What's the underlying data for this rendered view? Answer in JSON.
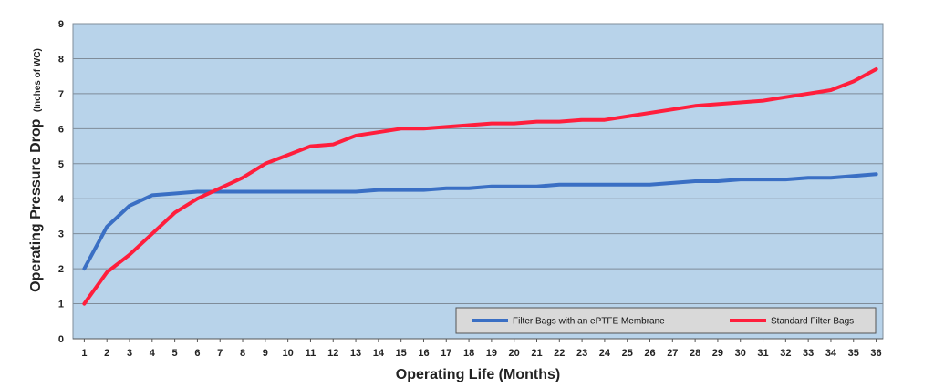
{
  "chart_data": {
    "type": "line",
    "xlabel": "Operating Life (Months)",
    "ylabel_main": "Operating Pressure Drop",
    "ylabel_unit": "(Inches of WC)",
    "x": [
      1,
      2,
      3,
      4,
      5,
      6,
      7,
      8,
      9,
      10,
      11,
      12,
      13,
      14,
      15,
      16,
      17,
      18,
      19,
      20,
      21,
      22,
      23,
      24,
      25,
      26,
      27,
      28,
      29,
      30,
      31,
      32,
      33,
      34,
      35,
      36
    ],
    "ylim": [
      0,
      9
    ],
    "yticks": [
      0,
      1,
      2,
      3,
      4,
      5,
      6,
      7,
      8,
      9
    ],
    "grid": true,
    "legend_position": "bottom-right",
    "series": [
      {
        "name": "Filter Bags with an ePTFE Membrane",
        "color": "#3a6fc4",
        "values": [
          2.0,
          3.2,
          3.8,
          4.1,
          4.15,
          4.2,
          4.2,
          4.2,
          4.2,
          4.2,
          4.2,
          4.2,
          4.2,
          4.25,
          4.25,
          4.25,
          4.3,
          4.3,
          4.35,
          4.35,
          4.35,
          4.4,
          4.4,
          4.4,
          4.4,
          4.4,
          4.45,
          4.5,
          4.5,
          4.55,
          4.55,
          4.55,
          4.6,
          4.6,
          4.65,
          4.7
        ]
      },
      {
        "name": "Standard Filter Bags",
        "color": "#ff1e3c",
        "values": [
          1.0,
          1.9,
          2.4,
          3.0,
          3.6,
          4.0,
          4.3,
          4.6,
          5.0,
          5.25,
          5.5,
          5.55,
          5.8,
          5.9,
          6.0,
          6.0,
          6.05,
          6.1,
          6.15,
          6.15,
          6.2,
          6.2,
          6.25,
          6.25,
          6.35,
          6.45,
          6.55,
          6.65,
          6.7,
          6.75,
          6.8,
          6.9,
          7.0,
          7.1,
          7.35,
          7.7
        ]
      }
    ],
    "plot_background": "#b8d3ea",
    "grid_color": "#7f8c99"
  }
}
